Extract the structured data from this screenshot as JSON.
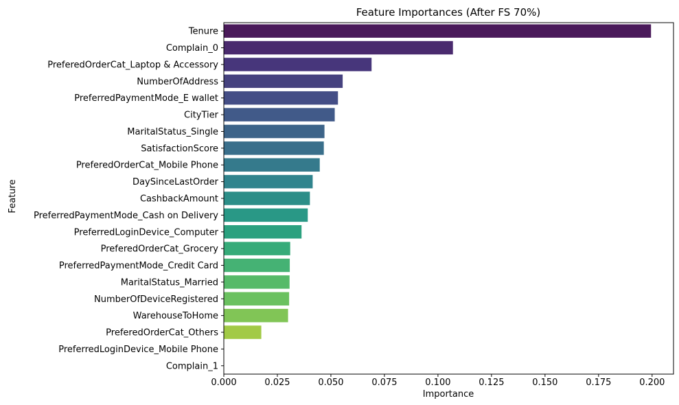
{
  "chart_data": {
    "type": "bar",
    "orientation": "horizontal",
    "title": "Feature Importances (After FS 70%)",
    "xlabel": "Importance",
    "ylabel": "Feature",
    "xlim": [
      0,
      0.21
    ],
    "x_ticks": [
      "0.000",
      "0.025",
      "0.050",
      "0.075",
      "0.100",
      "0.125",
      "0.150",
      "0.175",
      "0.200"
    ],
    "grid": false,
    "legend": "none",
    "palette": "viridis",
    "categories": [
      "Tenure",
      "Complain_0",
      "PreferedOrderCat_Laptop & Accessory",
      "NumberOfAddress",
      "PreferredPaymentMode_E wallet",
      "CityTier",
      "MaritalStatus_Single",
      "SatisfactionScore",
      "PreferedOrderCat_Mobile Phone",
      "DaySinceLastOrder",
      "CashbackAmount",
      "PreferredPaymentMode_Cash on Delivery",
      "PreferredLoginDevice_Computer",
      "PreferedOrderCat_Grocery",
      "PreferredPaymentMode_Credit Card",
      "MaritalStatus_Married",
      "NumberOfDeviceRegistered",
      "WarehouseToHome",
      "PreferedOrderCat_Others",
      "PreferredLoginDevice_Mobile Phone",
      "Complain_1"
    ],
    "values": [
      0.1995,
      0.107,
      0.069,
      0.0555,
      0.0533,
      0.0518,
      0.047,
      0.0467,
      0.0448,
      0.0415,
      0.0402,
      0.0392,
      0.0363,
      0.031,
      0.0308,
      0.0307,
      0.0305,
      0.03,
      0.0175,
      0.0,
      0.0
    ],
    "colors": [
      "#4a1a5a",
      "#4a2a6e",
      "#47367b",
      "#46427f",
      "#444e86",
      "#415a89",
      "#3d6489",
      "#3a6f8b",
      "#357a8c",
      "#30848d",
      "#2c8e88",
      "#299886",
      "#2ba17f",
      "#36ab79",
      "#45b274",
      "#56ba69",
      "#6bc160",
      "#81c556",
      "#a2ca46",
      "#c2d23a",
      "#dedd31"
    ]
  }
}
